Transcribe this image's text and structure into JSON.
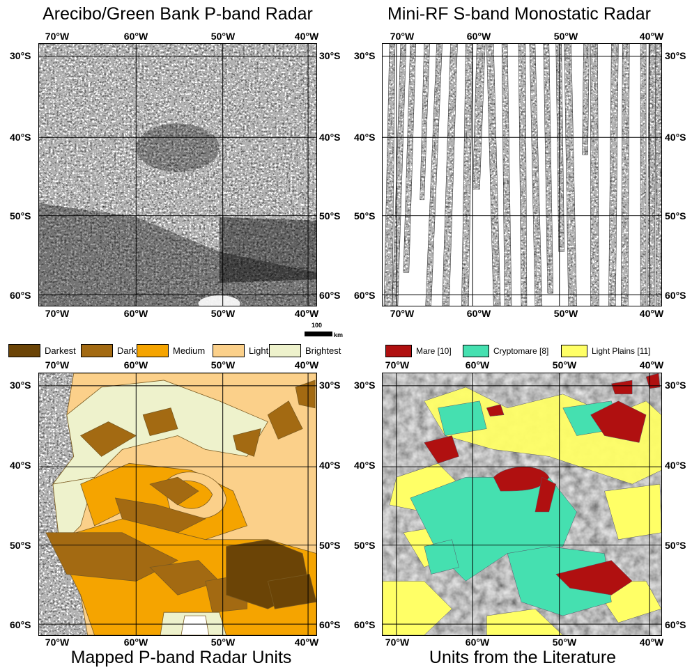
{
  "panels": {
    "top_left_title": "Arecibo/Green Bank P-band Radar",
    "top_right_title": "Mini-RF S-band Monostatic Radar",
    "bottom_left_title": "Mapped P-band Radar Units",
    "bottom_right_title": "Units from the Literature"
  },
  "axes": {
    "lon": [
      "70°W",
      "60°W",
      "50°W",
      "40°W"
    ],
    "lat": [
      "30°S",
      "40°S",
      "50°S",
      "60°S"
    ]
  },
  "scale_bar": {
    "value": "100",
    "unit": "km"
  },
  "legend_p_band": [
    {
      "label": "Darkest",
      "color": "#6b4406"
    },
    {
      "label": "Dark",
      "color": "#a36a12"
    },
    {
      "label": "Medium",
      "color": "#f5a400"
    },
    {
      "label": "Light",
      "color": "#fbd08a"
    },
    {
      "label": "Brightest",
      "color": "#eef2cc"
    }
  ],
  "legend_literature": [
    {
      "label": "Mare [10]",
      "color": "#b01010"
    },
    {
      "label": "Cryptomare [8]",
      "color": "#45e0b0"
    },
    {
      "label": "Light Plains [11]",
      "color": "#ffff66"
    }
  ]
}
